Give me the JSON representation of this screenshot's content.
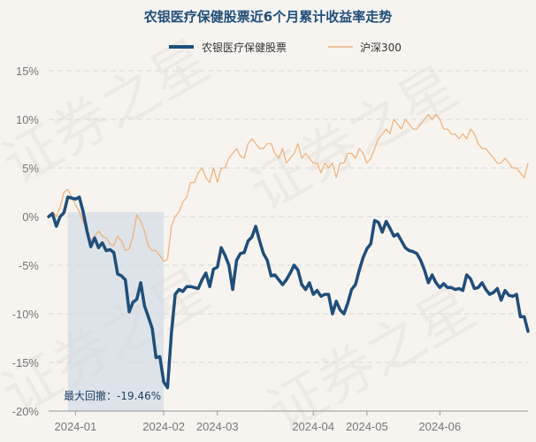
{
  "chart_data": {
    "type": "line",
    "title": "农银医疗保健股票近6个月累计收益率走势",
    "watermark": "证券之星",
    "ylabel": "",
    "xlabel": "",
    "ylim": [
      -20,
      15
    ],
    "yticks": [
      15,
      10,
      5,
      0,
      -5,
      -10,
      -15,
      -20
    ],
    "ytick_labels": [
      "15%",
      "10%",
      "5%",
      "0%",
      "-5%",
      "-10%",
      "-15%",
      "-20%"
    ],
    "xlim": [
      0,
      125
    ],
    "xticks": [
      7,
      30,
      44,
      69,
      83,
      102
    ],
    "xtick_labels": [
      "2024-01",
      "2024-02",
      "2024-03",
      "2024-04",
      "2024-05",
      "2024-06"
    ],
    "grid": true,
    "legend_position": "top-center",
    "max_drawdown": {
      "label": "最大回撤：",
      "value": "-19.46%",
      "start_x": 5,
      "end_x": 30
    },
    "series": [
      {
        "name": "农银医疗保健股票",
        "color": "#1f4e7a",
        "x": [
          0,
          1,
          2,
          3,
          4,
          5,
          6,
          7,
          8,
          9,
          10,
          11,
          12,
          13,
          14,
          15,
          16,
          17,
          18,
          19,
          20,
          21,
          22,
          23,
          24,
          25,
          26,
          27,
          28,
          29,
          30,
          31,
          32,
          33,
          34,
          35,
          36,
          37,
          38,
          39,
          40,
          41,
          42,
          43,
          44,
          45,
          46,
          47,
          48,
          49,
          50,
          51,
          52,
          53,
          54,
          55,
          56,
          57,
          58,
          59,
          60,
          61,
          62,
          63,
          64,
          65,
          66,
          67,
          68,
          69,
          70,
          71,
          72,
          73,
          74,
          75,
          76,
          77,
          78,
          79,
          80,
          81,
          82,
          83,
          84,
          85,
          86,
          87,
          88,
          89,
          90,
          91,
          92,
          93,
          94,
          95,
          96,
          97,
          98,
          99,
          100,
          101,
          102,
          103,
          104,
          105,
          106,
          107,
          108,
          109,
          110,
          111,
          112,
          113,
          114,
          115,
          116,
          117,
          118,
          119,
          120,
          121,
          122,
          123,
          124,
          125
        ],
        "values": [
          0,
          0.3,
          -1.0,
          0,
          0.4,
          2.0,
          1.9,
          1.8,
          2.0,
          0.5,
          -1.5,
          -3.1,
          -2.2,
          -3.2,
          -2.7,
          -3.5,
          -3.4,
          -3.7,
          -5.9,
          -6.1,
          -6.5,
          -9.8,
          -8.8,
          -8.5,
          -6.8,
          -9.2,
          -10.3,
          -11.5,
          -14.5,
          -14.4,
          -17.0,
          -17.6,
          -12.0,
          -8.0,
          -7.5,
          -7.7,
          -7.2,
          -7.2,
          -7.3,
          -7.4,
          -6.5,
          -5.8,
          -7.2,
          -5.4,
          -5.2,
          -3.2,
          -4.0,
          -5.0,
          -7.5,
          -4.5,
          -3.8,
          -3.7,
          -2.5,
          -2.1,
          -1.0,
          -2.5,
          -3.8,
          -4.5,
          -6.1,
          -6.0,
          -6.5,
          -7.0,
          -6.5,
          -5.8,
          -5.0,
          -5.5,
          -7.0,
          -7.5,
          -6.8,
          -8.0,
          -7.6,
          -8.2,
          -8.0,
          -8.0,
          -10.0,
          -8.7,
          -9.6,
          -10.0,
          -8.9,
          -7.5,
          -7.0,
          -5.5,
          -4.2,
          -3.3,
          -2.8,
          -0.4,
          -0.6,
          -1.6,
          -0.5,
          -1.2,
          -2.0,
          -1.8,
          -2.5,
          -3.2,
          -3.5,
          -3.6,
          -3.8,
          -4.5,
          -5.5,
          -6.8,
          -6.0,
          -6.8,
          -7.3,
          -6.9,
          -7.3,
          -7.3,
          -7.5,
          -7.4,
          -7.6,
          -6.0,
          -6.4,
          -7.4,
          -7.3,
          -6.8,
          -7.5,
          -8.0,
          -7.8,
          -7.4,
          -8.6,
          -7.6,
          -8.1,
          -8.2,
          -8.0,
          -10.3,
          -10.3,
          -11.8
        ]
      },
      {
        "name": "沪深300",
        "color": "#f0b27a",
        "x": [
          0,
          1,
          2,
          3,
          4,
          5,
          6,
          7,
          8,
          9,
          10,
          11,
          12,
          13,
          14,
          15,
          16,
          17,
          18,
          19,
          20,
          21,
          22,
          23,
          24,
          25,
          26,
          27,
          28,
          29,
          30,
          31,
          32,
          33,
          34,
          35,
          36,
          37,
          38,
          39,
          40,
          41,
          42,
          43,
          44,
          45,
          46,
          47,
          48,
          49,
          50,
          51,
          52,
          53,
          54,
          55,
          56,
          57,
          58,
          59,
          60,
          61,
          62,
          63,
          64,
          65,
          66,
          67,
          68,
          69,
          70,
          71,
          72,
          73,
          74,
          75,
          76,
          77,
          78,
          79,
          80,
          81,
          82,
          83,
          84,
          85,
          86,
          87,
          88,
          89,
          90,
          91,
          92,
          93,
          94,
          95,
          96,
          97,
          98,
          99,
          100,
          101,
          102,
          103,
          104,
          105,
          106,
          107,
          108,
          109,
          110,
          111,
          112,
          113,
          114,
          115,
          116,
          117,
          118,
          119,
          120,
          121,
          122,
          123,
          124,
          125
        ],
        "values": [
          0,
          0.5,
          0,
          1.0,
          2.5,
          2.8,
          2.0,
          1.2,
          0.5,
          -0.5,
          -1.5,
          -2.5,
          -2.0,
          -1.5,
          -2.0,
          -2.2,
          -2.8,
          -3.0,
          -2.0,
          -2.5,
          -3.5,
          -3.3,
          -2.0,
          0.2,
          -0.5,
          -1.5,
          -3.0,
          -3.5,
          -3.5,
          -4.0,
          -4.6,
          -4.4,
          -1.0,
          0,
          0.5,
          1.5,
          2.0,
          3.5,
          3.5,
          4.5,
          5.0,
          4.0,
          3.5,
          5.0,
          3.5,
          5.0,
          5.0,
          6.0,
          6.5,
          7.0,
          6.2,
          6.0,
          7.5,
          8.0,
          7.5,
          7.0,
          7.0,
          7.5,
          7.5,
          6.5,
          6.0,
          7.0,
          5.5,
          6.0,
          6.5,
          7.5,
          6.0,
          6.5,
          6.0,
          5.5,
          5.5,
          4.5,
          5.5,
          5.0,
          5.5,
          4.0,
          5.5,
          5.5,
          6.5,
          6.5,
          6.0,
          7.0,
          6.5,
          5.5,
          6.0,
          7.0,
          8.0,
          8.5,
          9.0,
          8.5,
          10.0,
          9.5,
          9.0,
          10.0,
          9.5,
          9.0,
          9.0,
          9.5,
          10.0,
          10.5,
          10.0,
          10.5,
          10.0,
          9.0,
          9.0,
          8.5,
          8.5,
          8.0,
          8.5,
          8.0,
          9.0,
          8.5,
          7.5,
          7.0,
          7.0,
          6.5,
          6.0,
          5.5,
          5.5,
          6.0,
          5.5,
          5.0,
          5.0,
          4.5,
          4.0,
          5.5
        ]
      }
    ]
  }
}
